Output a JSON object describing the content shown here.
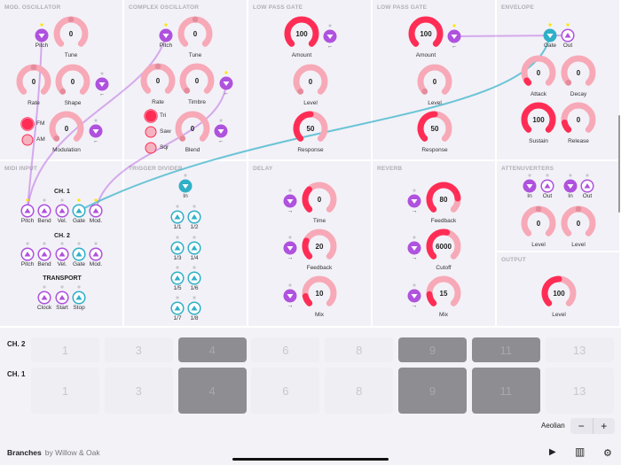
{
  "colors": {
    "purple": "#af52de",
    "teal": "#30b0c7",
    "red": "#ff2d55",
    "pink": "#f7a9b7",
    "dot_yellow": "#ffe500",
    "dot_grey": "#c7c7cc",
    "cell_on": "#8e8d92",
    "cell_off": "#efeef3"
  },
  "modules": [
    {
      "title": "MOD. OSCILLATOR",
      "controls": [
        {
          "type": "port",
          "label": "Pitch",
          "kind": "in",
          "color": "purple",
          "dot": "yellow"
        },
        {
          "type": "knob",
          "label": "Tune",
          "value": "0",
          "fill": 0,
          "marker": 0.5
        },
        {
          "type": "knob",
          "label": "Rate",
          "value": "0",
          "fill": 0,
          "marker": 0.5
        },
        {
          "type": "knob",
          "label": "Shape",
          "value": "0",
          "fill": 0,
          "marker": 0
        },
        {
          "type": "port",
          "label": "←",
          "kind": "in",
          "color": "purple",
          "dot": "grey"
        },
        {
          "type": "radio",
          "label": "FM",
          "active": true
        },
        {
          "type": "radio",
          "label": "AM",
          "active": false
        },
        {
          "type": "knob",
          "label": "Modulation",
          "value": "0",
          "fill": 0,
          "marker": 0
        },
        {
          "type": "port",
          "label": "←",
          "kind": "in",
          "color": "purple",
          "dot": "grey"
        }
      ]
    },
    {
      "title": "COMPLEX OSCILLATOR",
      "controls": [
        {
          "type": "port",
          "label": "Pitch",
          "kind": "in",
          "color": "purple",
          "dot": "yellow"
        },
        {
          "type": "knob",
          "label": "Tune",
          "value": "0",
          "fill": 0,
          "marker": 0.5
        },
        {
          "type": "knob",
          "label": "Rate",
          "value": "0",
          "fill": 0,
          "marker": 0.5
        },
        {
          "type": "knob",
          "label": "Timbre",
          "value": "0",
          "fill": 0,
          "marker": 0
        },
        {
          "type": "port",
          "label": "←",
          "kind": "in",
          "color": "purple",
          "dot": "yellow"
        },
        {
          "type": "radio",
          "label": "Tri",
          "active": true
        },
        {
          "type": "radio",
          "label": "Saw",
          "active": false
        },
        {
          "type": "radio",
          "label": "Sqr",
          "active": false
        },
        {
          "type": "knob",
          "label": "Blend",
          "value": "0",
          "fill": 0,
          "marker": 0
        },
        {
          "type": "port",
          "label": "←",
          "kind": "in",
          "color": "purple",
          "dot": "grey"
        }
      ]
    },
    {
      "title": "LOW PASS GATE",
      "controls": [
        {
          "type": "knob",
          "label": "Amount",
          "value": "100",
          "fill": 1
        },
        {
          "type": "port",
          "label": "←",
          "kind": "in",
          "color": "purple",
          "dot": "grey"
        },
        {
          "type": "knob",
          "label": "Level",
          "value": "0",
          "fill": 0,
          "marker": 0
        },
        {
          "type": "knob",
          "label": "Response",
          "value": "50",
          "fill": 0.5
        }
      ]
    },
    {
      "title": "LOW PASS GATE",
      "controls": [
        {
          "type": "knob",
          "label": "Amount",
          "value": "100",
          "fill": 1
        },
        {
          "type": "port",
          "label": "←",
          "kind": "in",
          "color": "purple",
          "dot": "yellow"
        },
        {
          "type": "knob",
          "label": "Level",
          "value": "0",
          "fill": 0,
          "marker": 0
        },
        {
          "type": "knob",
          "label": "Response",
          "value": "50",
          "fill": 0.5
        }
      ]
    },
    {
      "title": "ENVELOPE",
      "controls": [
        {
          "type": "port",
          "label": "Gate",
          "kind": "in",
          "color": "teal",
          "dot": "yellow"
        },
        {
          "type": "port",
          "label": "Out",
          "kind": "out",
          "color": "purple",
          "dot": "yellow"
        },
        {
          "type": "knob",
          "label": "Attack",
          "value": "0",
          "fill": 0.04
        },
        {
          "type": "knob",
          "label": "Decay",
          "value": "0",
          "fill": 0,
          "marker": 0
        },
        {
          "type": "knob",
          "label": "Sustain",
          "value": "100",
          "fill": 1
        },
        {
          "type": "knob",
          "label": "Release",
          "value": "0",
          "fill": 0.12
        }
      ]
    },
    {
      "title": "MIDI INPUT",
      "sublabels": [
        "CH. 1",
        "CH. 2",
        "TRANSPORT"
      ],
      "controls": [
        {
          "type": "port",
          "label": "Pitch",
          "kind": "out",
          "color": "purple",
          "dot": "yellow"
        },
        {
          "type": "port",
          "label": "Bend",
          "kind": "out",
          "color": "purple",
          "dot": "grey"
        },
        {
          "type": "port",
          "label": "Vel.",
          "kind": "out",
          "color": "purple",
          "dot": "grey"
        },
        {
          "type": "port",
          "label": "Gate",
          "kind": "out",
          "color": "teal",
          "dot": "yellow"
        },
        {
          "type": "port",
          "label": "Mod.",
          "kind": "out",
          "color": "purple",
          "dot": "yellow"
        },
        {
          "type": "port",
          "label": "Pitch",
          "kind": "out",
          "color": "purple",
          "dot": "grey"
        },
        {
          "type": "port",
          "label": "Bend",
          "kind": "out",
          "color": "purple",
          "dot": "grey"
        },
        {
          "type": "port",
          "label": "Vel.",
          "kind": "out",
          "color": "purple",
          "dot": "grey"
        },
        {
          "type": "port",
          "label": "Gate",
          "kind": "out",
          "color": "teal",
          "dot": "grey"
        },
        {
          "type": "port",
          "label": "Mod.",
          "kind": "out",
          "color": "purple",
          "dot": "grey"
        },
        {
          "type": "port",
          "label": "Clock",
          "kind": "out",
          "color": "purple",
          "dot": "grey"
        },
        {
          "type": "port",
          "label": "Start",
          "kind": "out",
          "color": "purple",
          "dot": "grey"
        },
        {
          "type": "port",
          "label": "Stop",
          "kind": "out",
          "color": "teal",
          "dot": "grey"
        }
      ]
    },
    {
      "title": "TRIGGER DIVIDER",
      "controls": [
        {
          "type": "port",
          "label": "In",
          "kind": "in",
          "color": "teal",
          "dot": "grey"
        },
        {
          "type": "port",
          "label": "1/1",
          "kind": "out",
          "color": "teal",
          "dot": "grey"
        },
        {
          "type": "port",
          "label": "1/2",
          "kind": "out",
          "color": "teal",
          "dot": "grey"
        },
        {
          "type": "port",
          "label": "1/3",
          "kind": "out",
          "color": "teal",
          "dot": "grey"
        },
        {
          "type": "port",
          "label": "1/4",
          "kind": "out",
          "color": "teal",
          "dot": "grey"
        },
        {
          "type": "port",
          "label": "1/5",
          "kind": "out",
          "color": "teal",
          "dot": "grey"
        },
        {
          "type": "port",
          "label": "1/6",
          "kind": "out",
          "color": "teal",
          "dot": "grey"
        },
        {
          "type": "port",
          "label": "1/7",
          "kind": "out",
          "color": "teal",
          "dot": "grey"
        },
        {
          "type": "port",
          "label": "1/8",
          "kind": "out",
          "color": "teal",
          "dot": "grey"
        }
      ]
    },
    {
      "title": "DELAY",
      "controls": [
        {
          "type": "port",
          "label": "→",
          "kind": "in",
          "color": "purple",
          "dot": "grey"
        },
        {
          "type": "knob",
          "label": "Time",
          "value": "0",
          "fill": 0.33
        },
        {
          "type": "port",
          "label": "→",
          "kind": "in",
          "color": "purple",
          "dot": "grey"
        },
        {
          "type": "knob",
          "label": "Feedback",
          "value": "20",
          "fill": 0.25
        },
        {
          "type": "port",
          "label": "→",
          "kind": "in",
          "color": "purple",
          "dot": "grey"
        },
        {
          "type": "knob",
          "label": "Mix",
          "value": "10",
          "fill": 0.12
        }
      ]
    },
    {
      "title": "REVERB",
      "controls": [
        {
          "type": "port",
          "label": "→",
          "kind": "in",
          "color": "purple",
          "dot": "grey"
        },
        {
          "type": "knob",
          "label": "Feedback",
          "value": "80",
          "fill": 0.82
        },
        {
          "type": "port",
          "label": "→",
          "kind": "in",
          "color": "purple",
          "dot": "grey"
        },
        {
          "type": "knob",
          "label": "Cutoff",
          "value": "6000",
          "fill": 0.55
        },
        {
          "type": "port",
          "label": "→",
          "kind": "in",
          "color": "purple",
          "dot": "grey"
        },
        {
          "type": "knob",
          "label": "Mix",
          "value": "15",
          "fill": 0.15
        }
      ]
    },
    {
      "title": "ATTENUVERTERS",
      "controls": [
        {
          "type": "port",
          "label": "In",
          "kind": "in",
          "color": "purple",
          "dot": "grey"
        },
        {
          "type": "port",
          "label": "Out",
          "kind": "out",
          "color": "purple",
          "dot": "grey"
        },
        {
          "type": "port",
          "label": "In",
          "kind": "in",
          "color": "purple",
          "dot": "grey"
        },
        {
          "type": "port",
          "label": "Out",
          "kind": "out",
          "color": "purple",
          "dot": "grey"
        },
        {
          "type": "knob",
          "label": "Level",
          "value": "0",
          "fill": 0,
          "marker": 0.5
        },
        {
          "type": "knob",
          "label": "Level",
          "value": "0",
          "fill": 0,
          "marker": 0.5
        }
      ]
    },
    {
      "title": "OUTPUT",
      "controls": [
        {
          "type": "knob",
          "label": "Level",
          "value": "100",
          "fill": 0.5
        }
      ]
    }
  ],
  "sequencer": {
    "rows": [
      {
        "label": "CH. 2",
        "cells": [
          {
            "n": "1",
            "on": false
          },
          {
            "n": "3",
            "on": false
          },
          {
            "n": "4",
            "on": true
          },
          {
            "n": "6",
            "on": false
          },
          {
            "n": "8",
            "on": false
          },
          {
            "n": "9",
            "on": true
          },
          {
            "n": "11",
            "on": true
          },
          {
            "n": "13",
            "on": false
          }
        ]
      },
      {
        "label": "CH. 1",
        "cells": [
          {
            "n": "1",
            "on": false
          },
          {
            "n": "3",
            "on": false
          },
          {
            "n": "4",
            "on": true
          },
          {
            "n": "6",
            "on": false
          },
          {
            "n": "8",
            "on": false
          },
          {
            "n": "9",
            "on": true
          },
          {
            "n": "11",
            "on": true
          },
          {
            "n": "13",
            "on": false
          }
        ]
      }
    ],
    "scale": "Aeolian",
    "minus": "−",
    "plus": "+"
  },
  "footer": {
    "app": "Branches",
    "by": "by Willow & Oak",
    "icons": [
      "play-icon",
      "keyboard-icon",
      "gear-icon"
    ],
    "play": "▶",
    "keyboard": "▥",
    "gear": "⚙"
  }
}
